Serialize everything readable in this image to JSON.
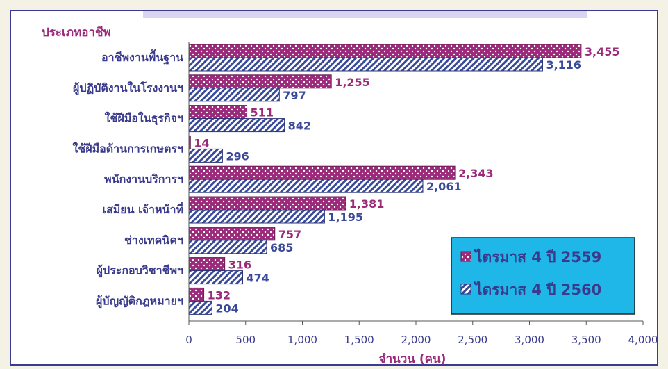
{
  "chart_data": {
    "type": "bar",
    "orientation": "horizontal",
    "title": "",
    "category_axis_title": "ประเภทอาชีพ",
    "xlabel": "จำนวน (คน)",
    "xlim": [
      0,
      4000
    ],
    "x_ticks": [
      "0",
      "500",
      "1,000",
      "1,500",
      "2,000",
      "2,500",
      "3,000",
      "3,500",
      "4,000"
    ],
    "grid": false,
    "legend_position": "bottom-right",
    "categories": [
      "อาชีพงานพื้นฐาน",
      "ผู้ปฏิบัติงานในโรงงานฯ",
      "ใช้ฝีมือในธุรกิจฯ",
      "ใช้ฝีมือด้านการเกษตรฯ",
      "พนักงานบริการฯ",
      "เสมียน  เจ้าหน้าที่",
      "ช่างเทคนิคฯ",
      "ผู้ประกอบวิชาชีพฯ",
      "ผู้บัญญัติกฎหมายฯ"
    ],
    "series": [
      {
        "name": "ไตรมาส 4 ปี 2559",
        "color": "#9b2a7a",
        "pattern": "dots",
        "values": [
          3455,
          1255,
          511,
          14,
          2343,
          1381,
          757,
          316,
          132
        ],
        "labels": [
          "3,455",
          "1,255",
          "511",
          "14",
          "2,343",
          "1,381",
          "757",
          "316",
          "132"
        ]
      },
      {
        "name": "ไตรมาส 4 ปี 2560",
        "color": "#3a4a9a",
        "pattern": "diagonal-stripes",
        "values": [
          3116,
          797,
          842,
          296,
          2061,
          1195,
          685,
          474,
          204
        ],
        "labels": [
          "3,116",
          "797",
          "842",
          "296",
          "2,061",
          "1,195",
          "685",
          "474",
          "204"
        ]
      }
    ]
  }
}
